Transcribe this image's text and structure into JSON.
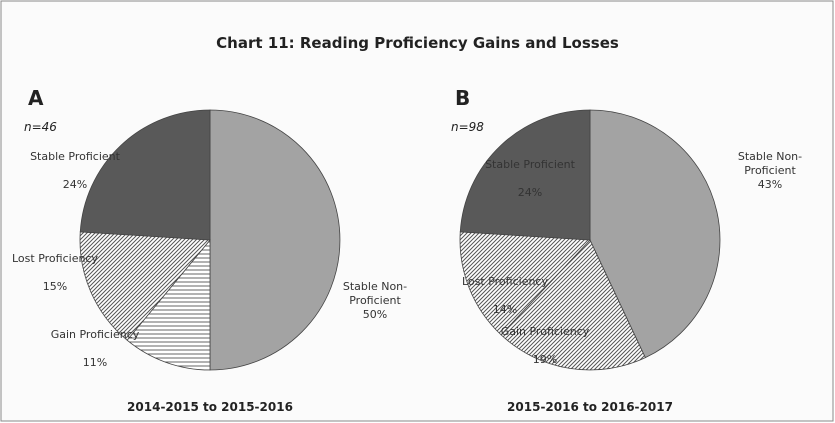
{
  "title": "Chart 11: Reading Proficiency Gains and Losses",
  "chart_data": [
    {
      "type": "pie",
      "panel": "A",
      "sample_size": "n=46",
      "xlabel": "2014-2015 to 2015-2016",
      "categories": [
        "Stable Non-Proficient",
        "Gain Proficiency",
        "Lost Proficiency",
        "Stable Proficient"
      ],
      "values": [
        50,
        11,
        15,
        24
      ],
      "value_labels": [
        "50%",
        "11%",
        "15%",
        "24%"
      ],
      "colors": [
        "#a3a3a3",
        "#e6e6e6",
        "#d4d4d4",
        "#595959"
      ],
      "hatch": [
        "none",
        "horizontal",
        "diagonal",
        "none"
      ]
    },
    {
      "type": "pie",
      "panel": "B",
      "sample_size": "n=98",
      "xlabel": "2015-2016 to 2016-2017",
      "categories": [
        "Stable Non-Proficient",
        "Gain Proficiency",
        "Lost Proficiency",
        "Stable Proficient"
      ],
      "values": [
        43,
        19,
        14,
        24
      ],
      "value_labels": [
        "43%",
        "19%",
        "14%",
        "24%"
      ],
      "colors": [
        "#a3a3a3",
        "#e6e6e6",
        "#d4d4d4",
        "#595959"
      ],
      "hatch": [
        "none",
        "diagonal",
        "diagonal",
        "none"
      ]
    }
  ]
}
